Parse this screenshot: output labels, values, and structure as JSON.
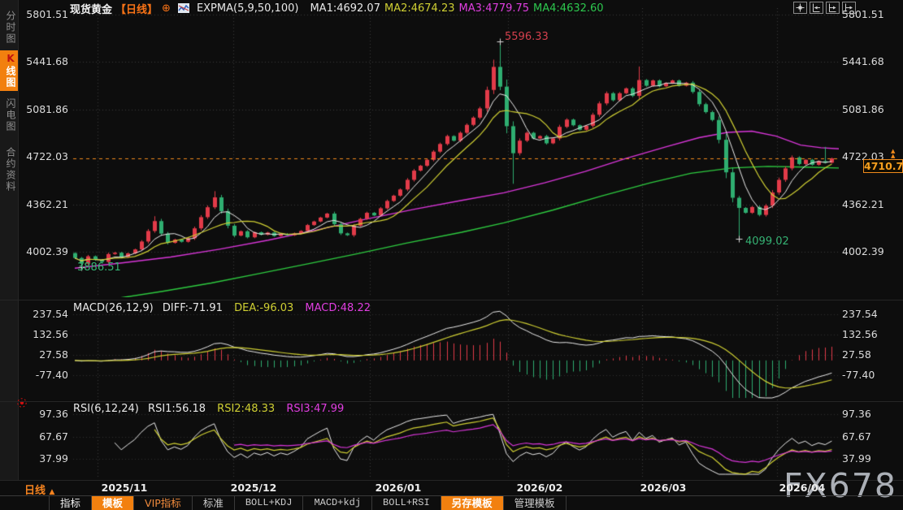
{
  "header": {
    "symbol": "现货黄金",
    "period_tag": "【日线】",
    "plus_icon": "⊕",
    "indicator_label": "EXPMA(5,9,50,100)",
    "ma_values": [
      {
        "label": "MA1:4692.07",
        "color": "#e8e8e8"
      },
      {
        "label": "MA2:4674.23",
        "color": "#cfcf33"
      },
      {
        "label": "MA3:4779.75",
        "color": "#e03ee0"
      },
      {
        "label": "MA4:4632.60",
        "color": "#2dc84e"
      }
    ]
  },
  "sidebar": {
    "items": [
      {
        "label": "分时图",
        "selected": false
      },
      {
        "label": "K线图",
        "prefix": "K",
        "rest": "线图",
        "selected": true
      },
      {
        "label": "闪电图",
        "selected": false
      },
      {
        "label": "合约资料",
        "selected": false
      }
    ]
  },
  "main_chart": {
    "y_axis": [
      "5801.51",
      "5441.68",
      "5081.86",
      "4722.03",
      "4362.21",
      "4002.39"
    ],
    "annotations": {
      "peak": "5596.33",
      "nov_low": "3886.51",
      "mar_low": "4099.02"
    },
    "price_tag": {
      "value": "4710.70",
      "line_level": "4722.03",
      "arrows": "▲"
    }
  },
  "macd_panel": {
    "title": "MACD(26,12,9)",
    "diff_label": "DIFF:-71.91",
    "dea_label": "DEA:-96.03",
    "macd_label": "MACD:48.22",
    "y_axis": [
      "237.54",
      "132.56",
      "27.58",
      "-77.40"
    ]
  },
  "rsi_panel": {
    "title": "RSI(6,12,24)",
    "rsi1_label": "RSI1:56.18",
    "rsi2_label": "RSI2:48.33",
    "rsi3_label": "RSI3:47.99",
    "y_axis": [
      "97.36",
      "67.67",
      "37.99"
    ]
  },
  "x_axis": {
    "period_label": "日线",
    "arrow": "▲",
    "dates": [
      "2025/11",
      "2025/12",
      "2026/01",
      "2026/02",
      "2026/03",
      "2026/04"
    ]
  },
  "toolbar": {
    "items": [
      {
        "label": "指标",
        "style": "plain"
      },
      {
        "label": "模板",
        "style": "active"
      },
      {
        "label": "VIP指标",
        "style": "vip"
      },
      {
        "label": "标准",
        "style": "plain"
      },
      {
        "label": "BOLL+KDJ",
        "style": "mono"
      },
      {
        "label": "MACD+kdj",
        "style": "mono"
      },
      {
        "label": "BOLL+RSI",
        "style": "mono"
      },
      {
        "label": "另存模板",
        "style": "active"
      },
      {
        "label": "管理模板",
        "style": "plain"
      }
    ]
  },
  "watermark": "FX678",
  "colors": {
    "up": "#e23b49",
    "down": "#2fae70",
    "ma_fast": "#ececec",
    "ma_slow": "#cfcf33",
    "ma50": "#d936d9",
    "ma100": "#2ecc40",
    "accent_orange": "#f08a1c",
    "grid": "#3c3c3c",
    "axis_text": "#dcdcdc",
    "red_text": "#d5404d",
    "green_text": "#35b273",
    "hist_up": "#e23b49",
    "hist_down": "#2fae70"
  },
  "chart_data": {
    "type": "candlestick+indicators",
    "title": "现货黄金 日线 (Spot Gold, daily)",
    "months": [
      "2025/11",
      "2025/12",
      "2026/01",
      "2026/02",
      "2026/03",
      "2026/04"
    ],
    "y_ticks": [
      5801.51,
      5441.68,
      5081.86,
      4722.03,
      4362.21,
      4002.39
    ],
    "open_first": 3992,
    "closes": [
      3955,
      3912,
      3968,
      3940,
      3925,
      3985,
      3995,
      3962,
      3990,
      4020,
      4080,
      4160,
      4235,
      4140,
      4070,
      4095,
      4078,
      4105,
      4180,
      4265,
      4340,
      4415,
      4310,
      4200,
      4125,
      4158,
      4112,
      4150,
      4132,
      4148,
      4122,
      4138,
      4128,
      4142,
      4160,
      4205,
      4232,
      4262,
      4292,
      4212,
      4142,
      4128,
      4200,
      4252,
      4298,
      4278,
      4332,
      4388,
      4428,
      4475,
      4548,
      4618,
      4655,
      4700,
      4762,
      4820,
      4880,
      4845,
      4905,
      4965,
      5020,
      5090,
      5230,
      5405,
      5255,
      4955,
      4750,
      4845,
      4905,
      4862,
      4880,
      4825,
      4862,
      4950,
      5005,
      4962,
      4928,
      4958,
      5042,
      5128,
      5205,
      5152,
      5205,
      5242,
      5185,
      5305,
      5262,
      5302,
      5258,
      5282,
      5302,
      5262,
      5285,
      5215,
      5122,
      5062,
      5002,
      4852,
      4605,
      4412,
      4335,
      4298,
      4342,
      4282,
      4352,
      4452,
      4548,
      4635,
      4718,
      4668,
      4700,
      4662,
      4690,
      4678,
      4710.7
    ],
    "wick_overrides": [
      [
        1,
        "low",
        3886.51
      ],
      [
        12,
        "high",
        4272
      ],
      [
        21,
        "high",
        4462
      ],
      [
        63,
        "high",
        5460
      ],
      [
        64,
        "high",
        5596.33
      ],
      [
        66,
        "low",
        4518
      ],
      [
        85,
        "high",
        5408
      ],
      [
        100,
        "low",
        4099.02
      ],
      [
        113,
        "high",
        4798
      ]
    ],
    "marked_points": [
      {
        "index": 64,
        "price": 5596.33,
        "label": "5596.33"
      },
      {
        "index": 1,
        "price": 3886.51,
        "label": "3886.51"
      },
      {
        "index": 100,
        "price": 4099.02,
        "label": "4099.02"
      }
    ],
    "last_price": 4710.7,
    "ma50_path": [
      [
        92,
        3878
      ],
      [
        150,
        3918
      ],
      [
        210,
        3962
      ],
      [
        270,
        4022
      ],
      [
        330,
        4090
      ],
      [
        390,
        4168
      ],
      [
        450,
        4250
      ],
      [
        510,
        4325
      ],
      [
        568,
        4392
      ],
      [
        620,
        4450
      ],
      [
        670,
        4525
      ],
      [
        720,
        4612
      ],
      [
        770,
        4710
      ],
      [
        820,
        4800
      ],
      [
        860,
        4868
      ],
      [
        895,
        4908
      ],
      [
        925,
        4917
      ],
      [
        955,
        4880
      ],
      [
        985,
        4812
      ],
      [
        1010,
        4792
      ],
      [
        1032,
        4783
      ]
    ],
    "ma100_path": [
      [
        140,
        3645
      ],
      [
        200,
        3702
      ],
      [
        260,
        3765
      ],
      [
        320,
        3838
      ],
      [
        380,
        3912
      ],
      [
        440,
        3988
      ],
      [
        500,
        4068
      ],
      [
        568,
        4150
      ],
      [
        620,
        4222
      ],
      [
        680,
        4318
      ],
      [
        740,
        4425
      ],
      [
        800,
        4525
      ],
      [
        850,
        4598
      ],
      [
        900,
        4638
      ],
      [
        945,
        4650
      ],
      [
        990,
        4645
      ],
      [
        1032,
        4638
      ]
    ],
    "macd": {
      "params": [
        26,
        12,
        9
      ],
      "diff": -71.91,
      "dea": -96.03,
      "macd": 48.22,
      "ticks": [
        237.54,
        132.56,
        27.58,
        -77.4
      ]
    },
    "rsi": {
      "params": [
        6,
        12,
        24
      ],
      "rsi1": 56.18,
      "rsi2": 48.33,
      "rsi3": 47.99,
      "ticks": [
        97.36,
        67.67,
        37.99
      ]
    }
  }
}
